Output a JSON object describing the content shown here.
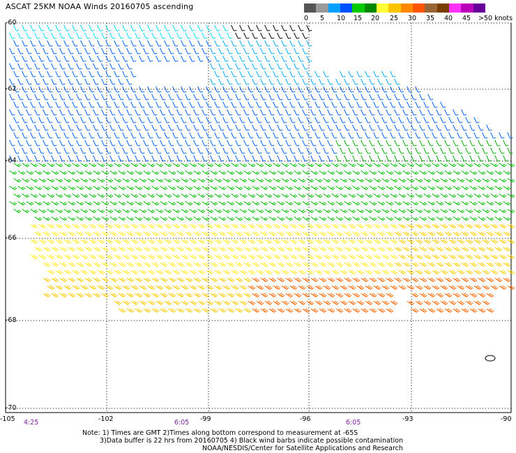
{
  "title": "ASCAT 25KM NOAA Winds 20160705 ascending",
  "legend": {
    "colors": [
      "#555555",
      "#9a9a9a",
      "#00a0ff",
      "#0050ff",
      "#00cc00",
      "#008800",
      "#ffff33",
      "#ffc400",
      "#ff8800",
      "#ff5500",
      "#996633",
      "#7a3d00",
      "#ff33ff",
      "#bb00bb",
      "#660099"
    ],
    "labels": [
      "0",
      "5",
      "10",
      "15",
      "20",
      "25",
      "30",
      "35",
      "40",
      "45",
      ">50 knots"
    ]
  },
  "axes": {
    "lat_labels": [
      "-60",
      "-62",
      "-64",
      "-66",
      "-68",
      "-70"
    ],
    "lon_labels": [
      "-105",
      "-102",
      "-99",
      "-96",
      "-93",
      "-90"
    ],
    "time_labels": [
      "4:25",
      "6:05",
      "6:05"
    ]
  },
  "notes": {
    "line1": "Note: 1) Times are GMT 2)Times along bottom correspond to measurement at -65S",
    "line2": "3)Data buffer is 22 hrs from 20160705 4) Black wind barbs indicate possible contamination",
    "line3": "NOAA/NESDIS/Center for Satellite Applications and Research"
  },
  "wind_field": {
    "speed_bands_knots": [
      {
        "region": "north (lat -60 to -64)",
        "speed": 12,
        "color": "#0050ff"
      },
      {
        "region": "north-east (lat -61 to -63)",
        "speed": 9,
        "color": "#00a0ff"
      },
      {
        "region": "north edge (lat -60)",
        "speed": 7,
        "color": "#00d8ff"
      },
      {
        "region": "central (lat -64 to -66)",
        "speed": 18,
        "color": "#00aa00"
      },
      {
        "region": "south (lat -66 to -67.5)",
        "speed": 22,
        "color": "#ffee00"
      },
      {
        "region": "south-east (lat -66.5 to -68)",
        "speed": 28,
        "color": "#ff8800"
      }
    ],
    "contaminated_color": "#000000"
  }
}
